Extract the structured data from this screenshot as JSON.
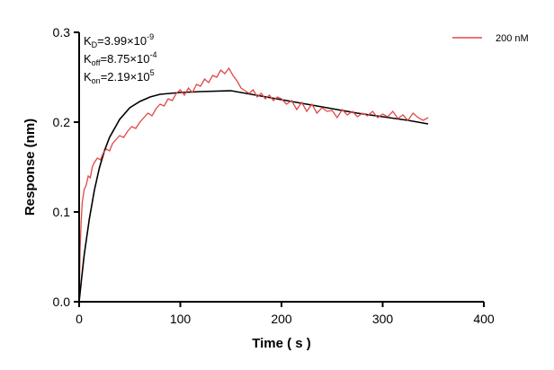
{
  "chart_data": {
    "type": "line",
    "xlabel": "Time ( s )",
    "ylabel": "Response (nm)",
    "xlim": [
      0,
      400
    ],
    "ylim": [
      0,
      0.3
    ],
    "xticks": [
      "0",
      "100",
      "200",
      "300",
      "400"
    ],
    "yticks": [
      "0.0",
      "0.1",
      "0.2",
      "0.3"
    ],
    "grid": false,
    "legend_position": "top-right",
    "annotations": [
      {
        "main": "K",
        "sub": "D",
        "text": "=3.99×10",
        "sup": "-9"
      },
      {
        "main": "K",
        "sub": "off",
        "text": "=8.75×10",
        "sup": "-4"
      },
      {
        "main": "K",
        "sub": "on",
        "text": "=2.19×10",
        "sup": "5"
      }
    ],
    "series": [
      {
        "name": "200 nM",
        "color": "#e04848",
        "x": [
          0,
          1,
          2,
          3,
          5,
          7,
          9,
          11,
          13,
          15,
          18,
          21,
          24,
          27,
          30,
          33,
          36,
          40,
          44,
          48,
          52,
          56,
          60,
          64,
          68,
          72,
          76,
          80,
          84,
          88,
          92,
          96,
          100,
          104,
          108,
          112,
          116,
          120,
          124,
          128,
          132,
          136,
          140,
          144,
          148,
          152,
          156,
          160,
          164,
          168,
          172,
          176,
          180,
          184,
          188,
          192,
          196,
          200,
          205,
          210,
          215,
          220,
          225,
          230,
          235,
          240,
          245,
          250,
          255,
          260,
          265,
          270,
          275,
          280,
          285,
          290,
          295,
          300,
          305,
          310,
          315,
          320,
          325,
          330,
          335,
          340,
          345
        ],
        "y": [
          0,
          0.06,
          0.09,
          0.11,
          0.125,
          0.13,
          0.14,
          0.138,
          0.15,
          0.155,
          0.16,
          0.158,
          0.166,
          0.17,
          0.168,
          0.176,
          0.18,
          0.185,
          0.183,
          0.19,
          0.195,
          0.193,
          0.2,
          0.205,
          0.21,
          0.207,
          0.215,
          0.22,
          0.218,
          0.226,
          0.224,
          0.232,
          0.236,
          0.23,
          0.238,
          0.233,
          0.242,
          0.24,
          0.248,
          0.244,
          0.252,
          0.25,
          0.258,
          0.254,
          0.26,
          0.252,
          0.246,
          0.238,
          0.235,
          0.232,
          0.236,
          0.228,
          0.232,
          0.226,
          0.23,
          0.224,
          0.228,
          0.226,
          0.22,
          0.224,
          0.214,
          0.222,
          0.212,
          0.22,
          0.21,
          0.216,
          0.212,
          0.213,
          0.205,
          0.214,
          0.208,
          0.212,
          0.206,
          0.21,
          0.207,
          0.212,
          0.205,
          0.209,
          0.206,
          0.212,
          0.204,
          0.208,
          0.202,
          0.21,
          0.205,
          0.202,
          0.205
        ]
      },
      {
        "color": "#000000",
        "x": [
          0,
          2,
          5,
          10,
          15,
          20,
          25,
          30,
          40,
          50,
          60,
          70,
          80,
          100,
          120,
          150,
          175,
          200,
          225,
          250,
          275,
          300,
          325,
          345
        ],
        "y": [
          0,
          0.022,
          0.052,
          0.092,
          0.124,
          0.149,
          0.168,
          0.183,
          0.203,
          0.216,
          0.223,
          0.228,
          0.231,
          0.233,
          0.234,
          0.235,
          0.23,
          0.225,
          0.22,
          0.215,
          0.21,
          0.206,
          0.202,
          0.198
        ]
      }
    ]
  }
}
